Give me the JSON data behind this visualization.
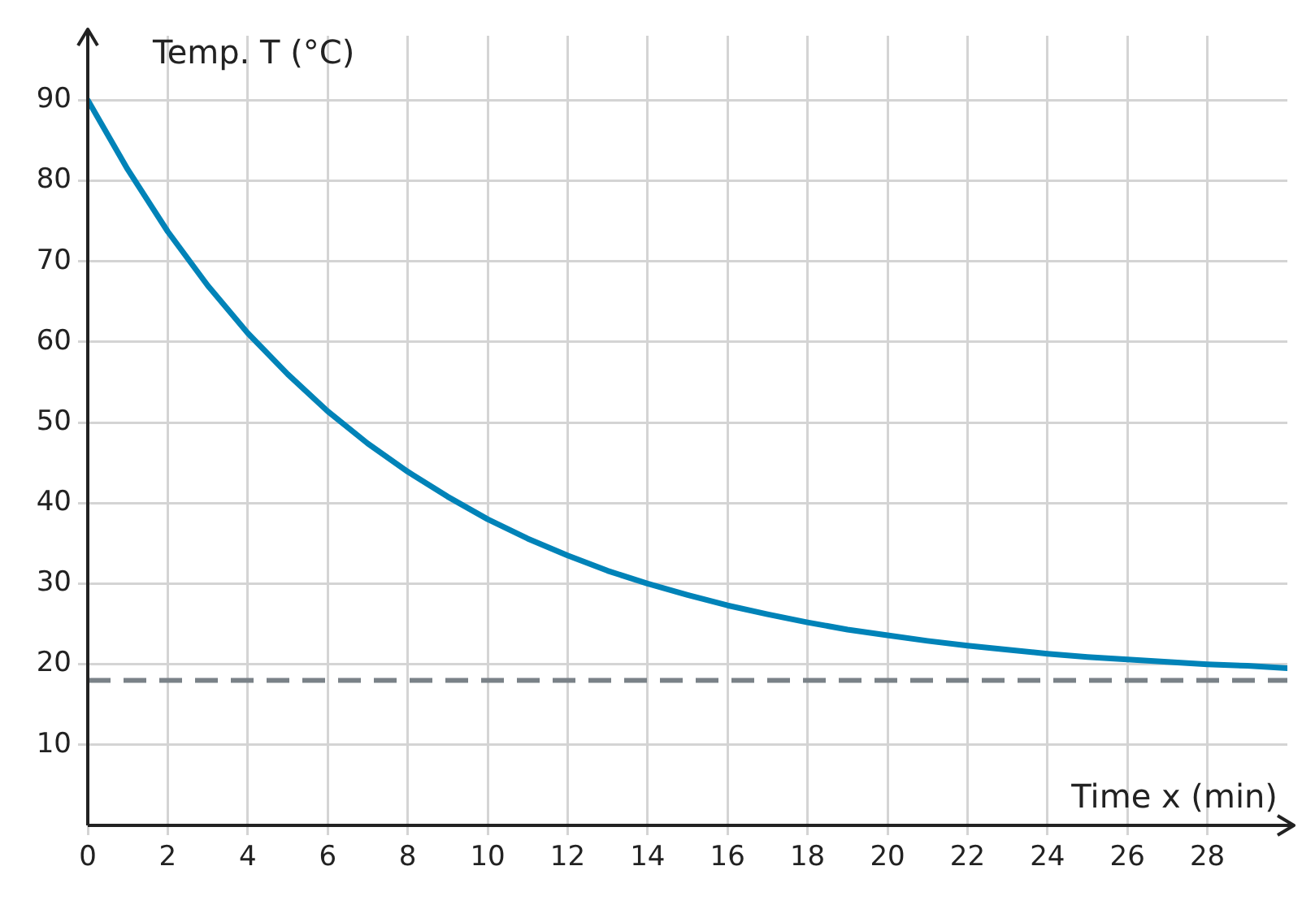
{
  "chart_data": {
    "type": "line",
    "xlabel": "Time x (min)",
    "ylabel": "Temp. T (°C)",
    "x": [
      0,
      1,
      2,
      3,
      4,
      5,
      6,
      7,
      8,
      9,
      10,
      11,
      12,
      13,
      14,
      15,
      16,
      17,
      18,
      19,
      20,
      21,
      22,
      23,
      24,
      25,
      26,
      27,
      28,
      29,
      30
    ],
    "series": [
      {
        "color": "#0083b8",
        "values": [
          90,
          81.4,
          73.7,
          67.0,
          61.1,
          56.0,
          51.4,
          47.4,
          43.9,
          40.8,
          38.0,
          35.6,
          33.5,
          31.6,
          30.0,
          28.6,
          27.3,
          26.2,
          25.2,
          24.3,
          23.6,
          22.9,
          22.3,
          21.8,
          21.3,
          20.9,
          20.6,
          20.3,
          20.0,
          19.8,
          19.5
        ]
      }
    ],
    "xlim": [
      0,
      30
    ],
    "ylim": [
      0,
      98
    ],
    "xticks": [
      {
        "value": 0,
        "label": "0"
      },
      2,
      4,
      6,
      8,
      10,
      12,
      14,
      16,
      18,
      20,
      22,
      24,
      26,
      28
    ],
    "yticks": [
      10,
      20,
      30,
      40,
      50,
      60,
      70,
      80,
      90
    ],
    "ref_lines": [
      {
        "axis": "y",
        "value": 18,
        "label": null,
        "color": "#7a8288",
        "line_style": "dashed"
      }
    ],
    "grid": true,
    "legend": false,
    "marker": "none",
    "line_style": "solid"
  }
}
